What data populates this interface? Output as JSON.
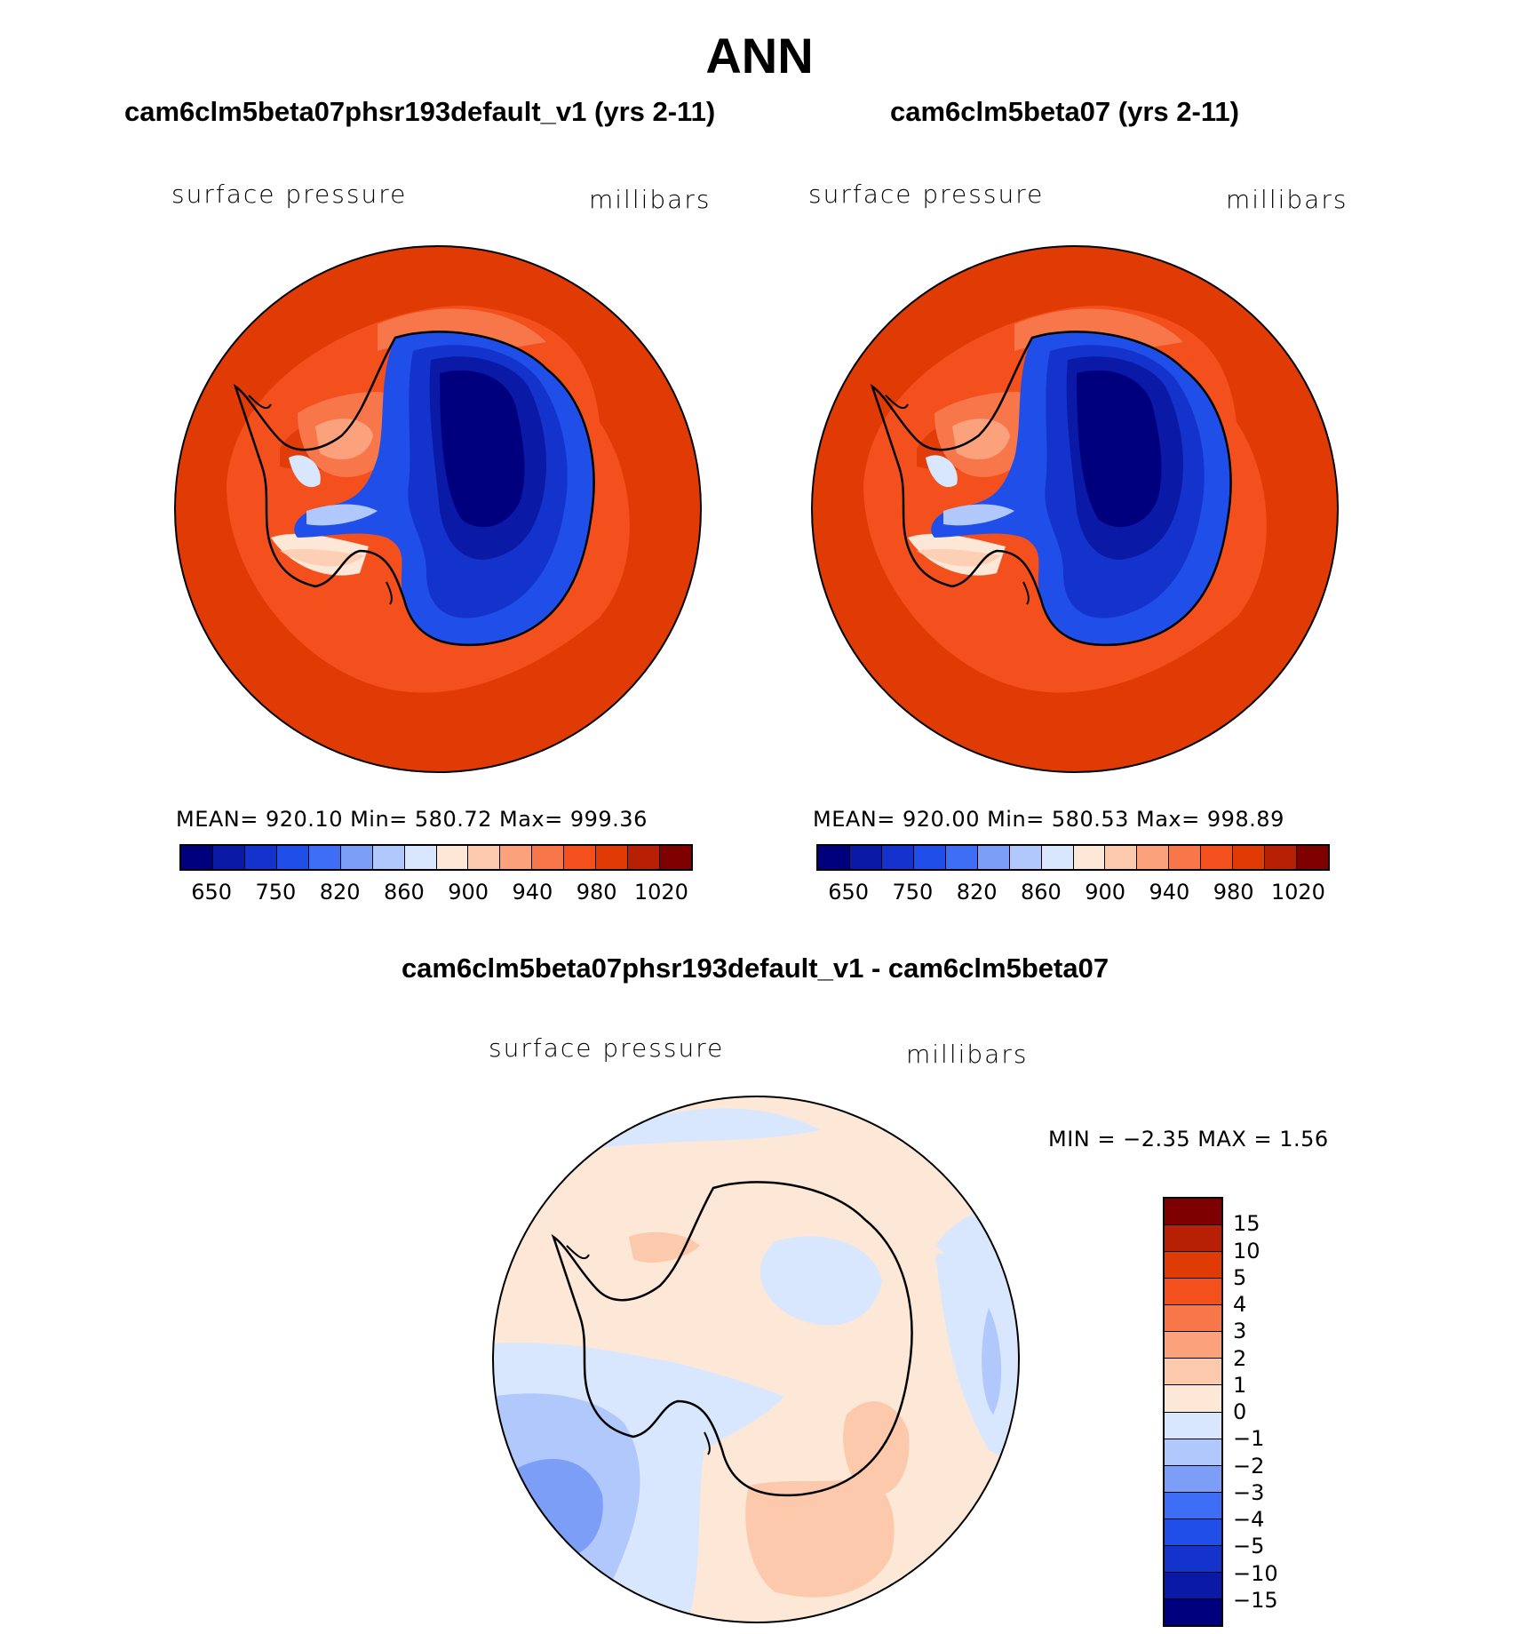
{
  "title": "ANN",
  "panels": [
    {
      "title": "cam6clm5beta07phsr193default_v1 (yrs 2-11)",
      "variable": "surface pressure",
      "units": "millibars",
      "stats": "MEAN=  920.10    Min=  580.72    Max=  999.36"
    },
    {
      "title": "cam6clm5beta07 (yrs 2-11)",
      "variable": "surface pressure",
      "units": "millibars",
      "stats": "MEAN=  920.00    Min=  580.53    Max=  998.89"
    }
  ],
  "diff": {
    "title": "cam6clm5beta07phsr193default_v1 - cam6clm5beta07",
    "variable": "surface pressure",
    "units": "millibars",
    "stats": "MIN =    −2.35  MAX =     1.56"
  },
  "colorbar_main": {
    "colors": [
      "#00007f",
      "#0a1aa6",
      "#1433cc",
      "#1f4fe8",
      "#3d6ef5",
      "#7c9ef7",
      "#b0c8fb",
      "#d8e7fd",
      "#fde8d8",
      "#fcc9ad",
      "#fba27c",
      "#f8774a",
      "#f4501e",
      "#e03a05",
      "#b82005",
      "#7f0000"
    ],
    "ticks": [
      "650",
      "750",
      "820",
      "860",
      "900",
      "940",
      "980",
      "1020"
    ]
  },
  "colorbar_diff": {
    "colors": [
      "#7f0000",
      "#b82005",
      "#e03a05",
      "#f4501e",
      "#f8774a",
      "#fba27c",
      "#fcc9ad",
      "#fde8d8",
      "#d8e7fd",
      "#b0c8fb",
      "#7c9ef7",
      "#3d6ef5",
      "#1f4fe8",
      "#1433cc",
      "#0a1aa6",
      "#00007f"
    ],
    "ticks": [
      "15",
      "10",
      "5",
      "4",
      "3",
      "2",
      "1",
      "0",
      "−1",
      "−2",
      "−3",
      "−4",
      "−5",
      "−10",
      "−15"
    ]
  }
}
